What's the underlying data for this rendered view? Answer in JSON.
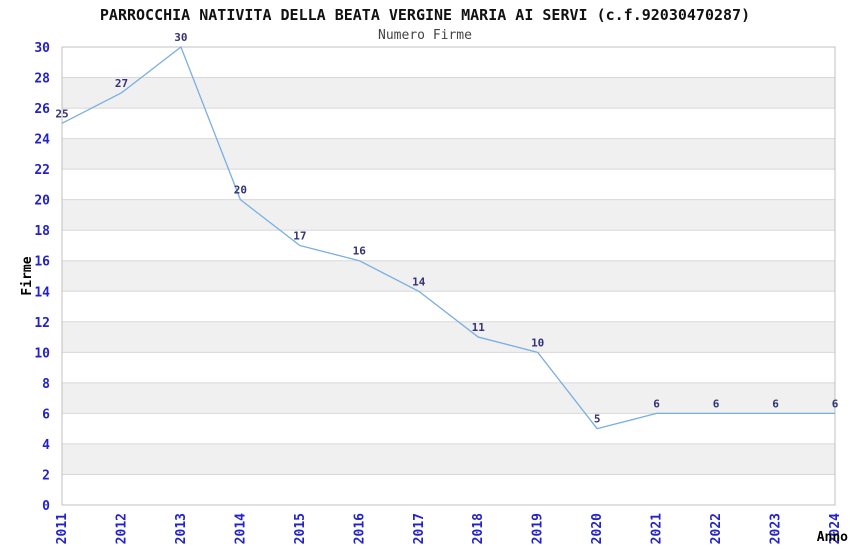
{
  "chart_data": {
    "type": "line",
    "title": "PARROCCHIA NATIVITA DELLA BEATA VERGINE MARIA AI SERVI (c.f.92030470287)",
    "subtitle": "Numero Firme",
    "xlabel": "Anno",
    "ylabel": "Firme",
    "categories": [
      "2011",
      "2012",
      "2013",
      "2014",
      "2015",
      "2016",
      "2017",
      "2018",
      "2019",
      "2020",
      "2021",
      "2022",
      "2023",
      "2024"
    ],
    "values": [
      25,
      27,
      30,
      20,
      17,
      16,
      14,
      11,
      10,
      5,
      6,
      6,
      6,
      6
    ],
    "data_labels": [
      "25",
      "27",
      "30",
      "20",
      "17",
      "16",
      "14",
      "11",
      "10",
      "5",
      "6",
      "6",
      "6",
      "6"
    ],
    "ylim": [
      0,
      30
    ],
    "yticks": [
      0,
      2,
      4,
      6,
      8,
      10,
      12,
      14,
      16,
      18,
      20,
      22,
      24,
      26,
      28,
      30
    ],
    "grid": true,
    "legend": false,
    "x_tick_rotation_deg": 90,
    "colors": {
      "line": "#79afe1",
      "tick_label": "#2222cc",
      "data_label": "#333377",
      "title": "#111111",
      "subtitle": "#444444",
      "axis_title": "#000000",
      "band": "#f0f0f0",
      "grid": "#d8d8d8",
      "border": "#c0c0c0",
      "background": "#ffffff"
    }
  }
}
